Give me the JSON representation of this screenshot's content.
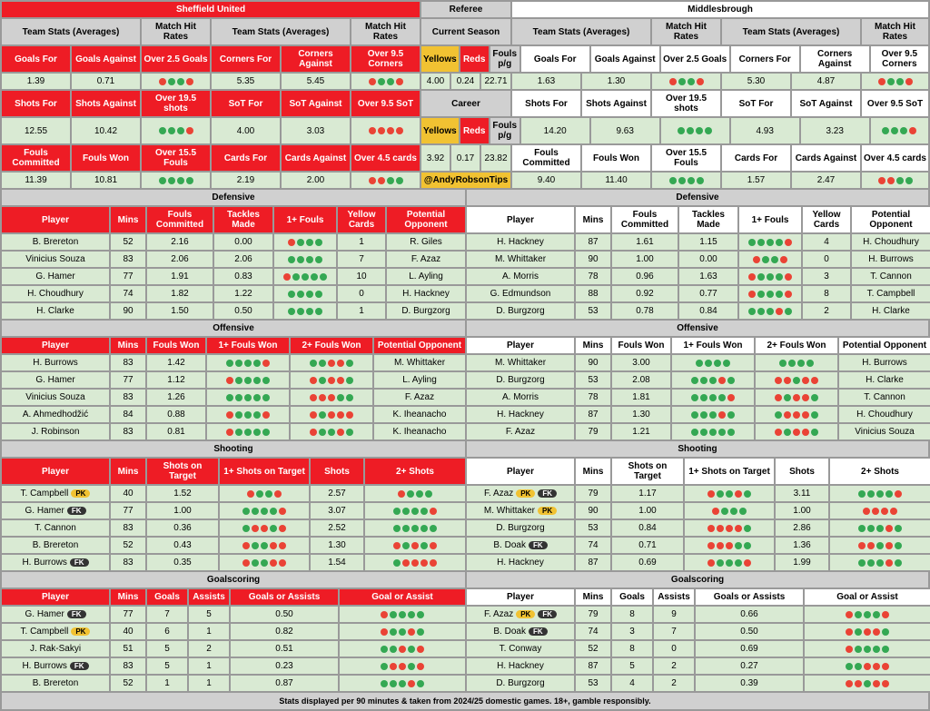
{
  "colors": {
    "red": "#ee1c25",
    "grey": "#d0d0d0",
    "green_bg": "#d9ead3",
    "yellow": "#f1c232",
    "dot_green": "#34a853",
    "dot_red": "#ea4335"
  },
  "home": {
    "name": "Sheffield United",
    "stats_hdr1": [
      "Team Stats (Averages)",
      "Match Hit Rates",
      "Team Stats (Averages)",
      "Match Hit Rates"
    ],
    "rows": [
      {
        "labels": [
          "Goals For",
          "Goals Against",
          "Over 2.5 Goals",
          "Corners For",
          "Corners Against",
          "Over 9.5 Corners"
        ],
        "vals": [
          "1.39",
          "0.71",
          "RGGR",
          "5.35",
          "5.45",
          "RGGR"
        ]
      },
      {
        "labels": [
          "Shots For",
          "Shots Against",
          "Over 19.5 shots",
          "SoT For",
          "SoT Against",
          "Over 9.5 SoT"
        ],
        "vals": [
          "12.55",
          "10.42",
          "GGGR",
          "4.00",
          "3.03",
          "RRRR"
        ]
      },
      {
        "labels": [
          "Fouls Committed",
          "Fouls Won",
          "Over 15.5 Fouls",
          "Cards For",
          "Cards Against",
          "Over 4.5 cards"
        ],
        "vals": [
          "11.39",
          "10.81",
          "GGGG",
          "2.19",
          "2.00",
          "RRGG"
        ]
      }
    ]
  },
  "referee": {
    "title": "Referee",
    "current": {
      "title": "Current Season",
      "labels": [
        "Yellows",
        "Reds",
        "Fouls p/g"
      ],
      "vals": [
        "4.00",
        "0.24",
        "22.71"
      ]
    },
    "career": {
      "title": "Career",
      "labels": [
        "Yellows",
        "Reds",
        "Fouls p/g"
      ],
      "vals": [
        "3.92",
        "0.17",
        "23.82"
      ]
    },
    "twitter": "@AndyRobsonTips"
  },
  "away": {
    "name": "Middlesbrough",
    "rows": [
      {
        "labels": [
          "Goals For",
          "Goals Against",
          "Over 2.5 Goals",
          "Corners For",
          "Corners Against",
          "Over 9.5 Corners"
        ],
        "vals": [
          "1.63",
          "1.30",
          "RGGR",
          "5.30",
          "4.87",
          "RGGR"
        ]
      },
      {
        "labels": [
          "Shots For",
          "Shots Against",
          "Over 19.5 shots",
          "SoT For",
          "SoT Against",
          "Over 9.5 SoT"
        ],
        "vals": [
          "14.20",
          "9.63",
          "GGGG",
          "4.93",
          "3.23",
          "GGGR"
        ]
      },
      {
        "labels": [
          "Fouls Committed",
          "Fouls Won",
          "Over 15.5 Fouls",
          "Cards For",
          "Cards Against",
          "Over 4.5 cards"
        ],
        "vals": [
          "9.40",
          "11.40",
          "GGGG",
          "1.57",
          "2.47",
          "RRGG"
        ]
      }
    ]
  },
  "sections": {
    "defensive": {
      "title": "Defensive",
      "cols": [
        "Player",
        "Mins",
        "Fouls Committed",
        "Tackles Made",
        "1+ Fouls",
        "Yellow Cards",
        "Potential Opponent"
      ],
      "home": [
        [
          "B. Brereton",
          "52",
          "2.16",
          "0.00",
          "RGGG",
          "1",
          "R. Giles"
        ],
        [
          "Vinicius Souza",
          "83",
          "2.06",
          "2.06",
          "GGGG",
          "7",
          "F. Azaz"
        ],
        [
          "G. Hamer",
          "77",
          "1.91",
          "0.83",
          "RGGGG",
          "10",
          "L. Ayling"
        ],
        [
          "H. Choudhury",
          "74",
          "1.82",
          "1.22",
          "GGGG",
          "0",
          "H. Hackney"
        ],
        [
          "H. Clarke",
          "90",
          "1.50",
          "0.50",
          "GGGG",
          "1",
          "D. Burgzorg"
        ]
      ],
      "away": [
        [
          "H. Hackney",
          "87",
          "1.61",
          "1.15",
          "GGGGR",
          "4",
          "H. Choudhury"
        ],
        [
          "M. Whittaker",
          "90",
          "1.00",
          "0.00",
          "RGGR",
          "0",
          "H. Burrows"
        ],
        [
          "A. Morris",
          "78",
          "0.96",
          "1.63",
          "RGGGR",
          "3",
          "T. Cannon"
        ],
        [
          "G. Edmundson",
          "88",
          "0.92",
          "0.77",
          "RGGGR",
          "8",
          "T. Campbell"
        ],
        [
          "D. Burgzorg",
          "53",
          "0.78",
          "0.84",
          "GGGRG",
          "2",
          "H. Clarke"
        ]
      ]
    },
    "offensive": {
      "title": "Offensive",
      "cols": [
        "Player",
        "Mins",
        "Fouls Won",
        "1+ Fouls Won",
        "2+ Fouls Won",
        "Potential Opponent"
      ],
      "home": [
        [
          "H. Burrows",
          "83",
          "1.42",
          "GGGGR",
          "GGRRG",
          "M. Whittaker"
        ],
        [
          "G. Hamer",
          "77",
          "1.12",
          "RGGGG",
          "RGRRG",
          "L. Ayling"
        ],
        [
          "Vinicius Souza",
          "83",
          "1.26",
          "GGGGG",
          "RRRGG",
          "F. Azaz"
        ],
        [
          "A. Ahmedhodžić",
          "84",
          "0.88",
          "RGGGR",
          "RGRRR",
          "K. Iheanacho"
        ],
        [
          "J. Robinson",
          "83",
          "0.81",
          "RGGGG",
          "RGGRG",
          "K. Iheanacho"
        ]
      ],
      "away": [
        [
          "M. Whittaker",
          "90",
          "3.00",
          "GGGG",
          "GGGG",
          "H. Burrows"
        ],
        [
          "D. Burgzorg",
          "53",
          "2.08",
          "GGGRG",
          "RRGRR",
          "H. Clarke"
        ],
        [
          "A. Morris",
          "78",
          "1.81",
          "GGGGR",
          "RGRRG",
          "T. Cannon"
        ],
        [
          "H. Hackney",
          "87",
          "1.30",
          "GGGRG",
          "GRRRG",
          "H. Choudhury"
        ],
        [
          "F. Azaz",
          "79",
          "1.21",
          "GGGGG",
          "RGRRG",
          "Vinicius Souza"
        ]
      ]
    },
    "shooting": {
      "title": "Shooting",
      "cols": [
        "Player",
        "Mins",
        "Shots on Target",
        "1+ Shots on Target",
        "Shots",
        "2+ Shots"
      ],
      "home": [
        [
          "T. Campbell|PK",
          "40",
          "1.52",
          "RGGR",
          "2.57",
          "RGGG"
        ],
        [
          "G. Hamer|FK",
          "77",
          "1.00",
          "GGGGR",
          "3.07",
          "GGGGR"
        ],
        [
          "T. Cannon",
          "83",
          "0.36",
          "GRRGR",
          "2.52",
          "GGGGG"
        ],
        [
          "B. Brereton",
          "52",
          "0.43",
          "RGGRR",
          "1.30",
          "RGRGR"
        ],
        [
          "H. Burrows|FK",
          "83",
          "0.35",
          "RGGRR",
          "1.54",
          "GRRRR"
        ]
      ],
      "away": [
        [
          "F. Azaz|PK|FK",
          "79",
          "1.17",
          "RGGRG",
          "3.11",
          "GGGGR"
        ],
        [
          "M. Whittaker|PK",
          "90",
          "1.00",
          "RGGG",
          "1.00",
          "RRRR"
        ],
        [
          "D. Burgzorg",
          "53",
          "0.84",
          "RRRRG",
          "2.86",
          "GGGRG"
        ],
        [
          "B. Doak|FK",
          "74",
          "0.71",
          "RRRGG",
          "1.36",
          "RRGRG"
        ],
        [
          "H. Hackney",
          "87",
          "0.69",
          "RGGGR",
          "1.99",
          "GGGRG"
        ]
      ]
    },
    "goalscoring": {
      "title": "Goalscoring",
      "cols": [
        "Player",
        "Mins",
        "Goals",
        "Assists",
        "Goals or Assists",
        "Goal or Assist"
      ],
      "home": [
        [
          "G. Hamer|FK",
          "77",
          "7",
          "5",
          "0.50",
          "RGGGG"
        ],
        [
          "T. Campbell|PK",
          "40",
          "6",
          "1",
          "0.82",
          "RGGRG"
        ],
        [
          "J. Rak-Sakyi",
          "51",
          "5",
          "2",
          "0.51",
          "GGRGR"
        ],
        [
          "H. Burrows|FK",
          "83",
          "5",
          "1",
          "0.23",
          "GRRGR"
        ],
        [
          "B. Brereton",
          "52",
          "1",
          "1",
          "0.87",
          "GGGRG"
        ]
      ],
      "away": [
        [
          "F. Azaz|PK|FK",
          "79",
          "8",
          "9",
          "0.66",
          "RGGGR"
        ],
        [
          "B. Doak|FK",
          "74",
          "3",
          "7",
          "0.50",
          "RGRRG"
        ],
        [
          "T. Conway",
          "52",
          "8",
          "0",
          "0.69",
          "RGGGG"
        ],
        [
          "H. Hackney",
          "87",
          "5",
          "2",
          "0.27",
          "GGRRR"
        ],
        [
          "D. Burgzorg",
          "53",
          "4",
          "2",
          "0.39",
          "RRGRR"
        ]
      ]
    }
  },
  "footer": "Stats displayed per 90 minutes & taken from 2024/25 domestic games. 18+, gamble responsibly."
}
